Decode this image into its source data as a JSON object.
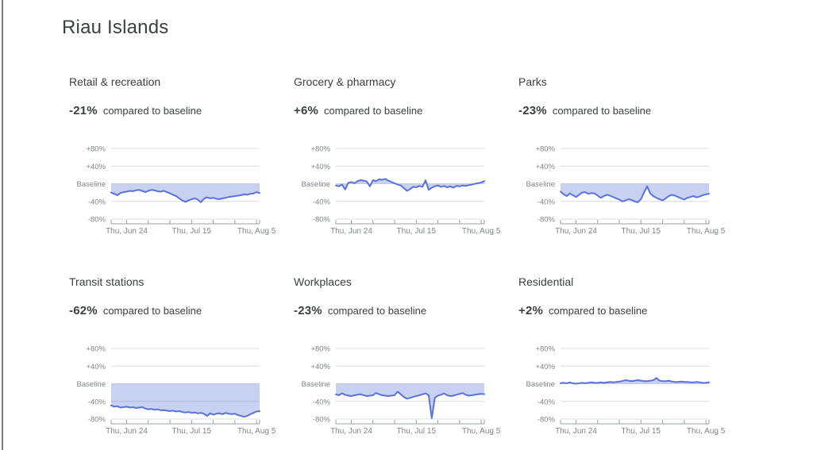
{
  "page": {
    "title": "Riau Islands"
  },
  "labels": {
    "compared_to_baseline": "compared to baseline"
  },
  "colors": {
    "line": "#5b72d8",
    "fill": "rgba(91,114,216,0.33)",
    "grid": "#dadce0",
    "axis_line": "#9aa0a6",
    "tick_text": "#80868b",
    "title_text": "#3c4043"
  },
  "chart_data": [
    {
      "type": "line",
      "title": "Retail & recreation",
      "headline_change": "-21%",
      "ylim": [
        -80,
        80
      ],
      "y_tick_labels": [
        "+80%",
        "+40%",
        "Baseline",
        "-40%",
        "-80%"
      ],
      "x_tick_labels": [
        "Thu, Jun 24",
        "Thu, Jul 15",
        "Thu, Aug 5"
      ],
      "values": [
        -20,
        -23,
        -26,
        -21,
        -19,
        -18,
        -16,
        -17,
        -15,
        -14,
        -16,
        -19,
        -16,
        -14,
        -15,
        -17,
        -18,
        -16,
        -19,
        -22,
        -25,
        -28,
        -33,
        -38,
        -41,
        -38,
        -35,
        -33,
        -36,
        -42,
        -34,
        -31,
        -33,
        -32,
        -34,
        -35,
        -33,
        -32,
        -30,
        -29,
        -28,
        -27,
        -26,
        -24,
        -25,
        -23,
        -22,
        -19,
        -21
      ]
    },
    {
      "type": "line",
      "title": "Grocery & pharmacy",
      "headline_change": "+6%",
      "ylim": [
        -80,
        80
      ],
      "y_tick_labels": [
        "+80%",
        "+40%",
        "Baseline",
        "-40%",
        "-80%"
      ],
      "x_tick_labels": [
        "Thu, Jun 24",
        "Thu, Jul 15",
        "Thu, Aug 5"
      ],
      "values": [
        -4,
        -6,
        -2,
        -13,
        2,
        4,
        1,
        6,
        8,
        7,
        5,
        -6,
        8,
        6,
        10,
        9,
        11,
        7,
        4,
        1,
        -2,
        -4,
        -10,
        -16,
        -12,
        -7,
        -8,
        -5,
        -7,
        8,
        -14,
        -9,
        -6,
        -4,
        -7,
        -5,
        -8,
        -6,
        -9,
        -5,
        -6,
        -4,
        -5,
        -3,
        -2,
        0,
        1,
        3,
        6
      ]
    },
    {
      "type": "line",
      "title": "Parks",
      "headline_change": "-23%",
      "ylim": [
        -80,
        80
      ],
      "y_tick_labels": [
        "+80%",
        "+40%",
        "Baseline",
        "-40%",
        "-80%"
      ],
      "x_tick_labels": [
        "Thu, Jun 24",
        "Thu, Jul 15",
        "Thu, Aug 5"
      ],
      "values": [
        -18,
        -24,
        -28,
        -22,
        -26,
        -30,
        -25,
        -20,
        -19,
        -23,
        -21,
        -22,
        -27,
        -32,
        -28,
        -25,
        -27,
        -30,
        -33,
        -36,
        -40,
        -38,
        -35,
        -37,
        -40,
        -42,
        -35,
        -20,
        -6,
        -22,
        -28,
        -32,
        -35,
        -38,
        -33,
        -28,
        -25,
        -27,
        -30,
        -33,
        -36,
        -32,
        -30,
        -28,
        -31,
        -29,
        -26,
        -24,
        -23
      ]
    },
    {
      "type": "line",
      "title": "Transit stations",
      "headline_change": "-62%",
      "ylim": [
        -80,
        80
      ],
      "y_tick_labels": [
        "+80%",
        "+40%",
        "Baseline",
        "-40%",
        "-80%"
      ],
      "x_tick_labels": [
        "Thu, Jun 24",
        "Thu, Jul 15",
        "Thu, Aug 5"
      ],
      "values": [
        -49,
        -52,
        -51,
        -54,
        -53,
        -52,
        -54,
        -53,
        -55,
        -54,
        -53,
        -56,
        -58,
        -57,
        -59,
        -58,
        -60,
        -60,
        -61,
        -62,
        -61,
        -63,
        -62,
        -64,
        -65,
        -64,
        -66,
        -65,
        -67,
        -66,
        -68,
        -73,
        -67,
        -70,
        -68,
        -67,
        -69,
        -66,
        -68,
        -69,
        -68,
        -71,
        -73,
        -75,
        -73,
        -69,
        -66,
        -63,
        -62
      ]
    },
    {
      "type": "line",
      "title": "Workplaces",
      "headline_change": "-23%",
      "ylim": [
        -80,
        80
      ],
      "y_tick_labels": [
        "+80%",
        "+40%",
        "Baseline",
        "-40%",
        "-80%"
      ],
      "x_tick_labels": [
        "Thu, Jun 24",
        "Thu, Jul 15",
        "Thu, Aug 5"
      ],
      "values": [
        -24,
        -26,
        -22,
        -25,
        -27,
        -28,
        -26,
        -25,
        -24,
        -26,
        -28,
        -27,
        -26,
        -21,
        -24,
        -26,
        -27,
        -28,
        -27,
        -26,
        -18,
        -24,
        -30,
        -34,
        -32,
        -30,
        -28,
        -26,
        -24,
        -22,
        -26,
        -78,
        -32,
        -27,
        -25,
        -22,
        -26,
        -28,
        -27,
        -25,
        -23,
        -21,
        -25,
        -27,
        -26,
        -25,
        -24,
        -23,
        -24
      ]
    },
    {
      "type": "line",
      "title": "Residential",
      "headline_change": "+2%",
      "ylim": [
        -80,
        80
      ],
      "y_tick_labels": [
        "+80%",
        "+40%",
        "Baseline",
        "-40%",
        "-80%"
      ],
      "x_tick_labels": [
        "Thu, Jun 24",
        "Thu, Jul 15",
        "Thu, Aug 5"
      ],
      "values": [
        1,
        2,
        1,
        3,
        1,
        0,
        1,
        2,
        1,
        2,
        3,
        2,
        2,
        3,
        2,
        3,
        4,
        3,
        4,
        5,
        6,
        8,
        7,
        6,
        7,
        8,
        7,
        6,
        6,
        7,
        8,
        13,
        7,
        6,
        6,
        7,
        5,
        4,
        4,
        5,
        4,
        4,
        3,
        3,
        4,
        3,
        2,
        2,
        3
      ]
    }
  ]
}
